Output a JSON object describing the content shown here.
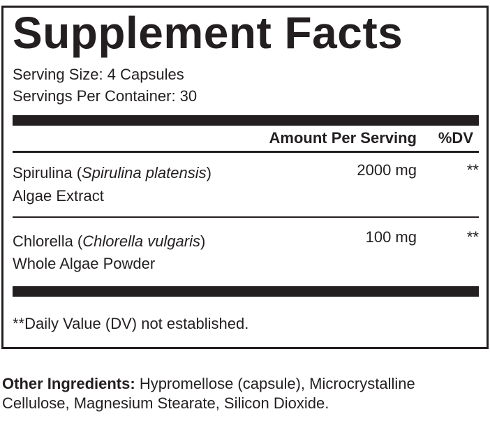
{
  "title": "Supplement Facts",
  "serving_size": "Serving Size: 4 Capsules",
  "servings_per_container": "Servings Per Container: 30",
  "table": {
    "header": [
      "Amount Per Serving",
      "%DV"
    ],
    "rows": [
      {
        "name_prefix": "Spirulina (",
        "name_italic": "Spirulina platensis",
        "name_suffix": ")",
        "name_line2": "Algae Extract",
        "amount": "2000 mg",
        "dv": "**"
      },
      {
        "name_prefix": "Chlorella (",
        "name_italic": "Chlorella vulgaris",
        "name_suffix": ")",
        "name_line2": "Whole Algae Powder",
        "amount": "100 mg",
        "dv": "**"
      }
    ]
  },
  "footnote": "**Daily Value (DV) not established.",
  "other_ingredients": {
    "label": "Other Ingredients:",
    "text": "Hypromellose (capsule), Microcrystalline Cellulose, Magnesium Stearate, Silicon Dioxide."
  }
}
